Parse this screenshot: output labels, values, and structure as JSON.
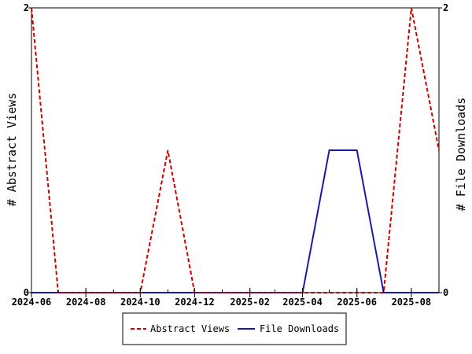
{
  "chart_data": {
    "type": "line",
    "title": "",
    "xlabel": "",
    "ylabel_left": "# Abstract Views",
    "ylabel_right": "# File Downloads",
    "x_tick_labels": [
      "2024-06",
      "2024-08",
      "2024-10",
      "2024-12",
      "2025-02",
      "2025-04",
      "2025-06",
      "2025-08"
    ],
    "y_left_ticks": [
      "0",
      "2"
    ],
    "y_right_ticks": [
      "0",
      "2"
    ],
    "ylim_left": [
      0,
      2
    ],
    "ylim_right": [
      0,
      2
    ],
    "xlim": [
      "2024-06-01",
      "2025-09-01"
    ],
    "grid": false,
    "legend_position": "bottom",
    "series": [
      {
        "name": "Abstract Views",
        "axis": "left",
        "color": "#cc0000",
        "style": "dashed",
        "x": [
          "2024-06-01",
          "2024-07-01",
          "2024-08-01",
          "2024-09-01",
          "2024-10-01",
          "2024-11-01",
          "2024-12-01",
          "2025-01-01",
          "2025-02-01",
          "2025-03-01",
          "2025-04-01",
          "2025-05-01",
          "2025-06-01",
          "2025-07-01",
          "2025-08-01",
          "2025-09-01"
        ],
        "values": [
          2,
          0,
          0,
          0,
          0,
          1,
          0,
          0,
          0,
          0,
          0,
          0,
          0,
          0,
          2,
          1
        ]
      },
      {
        "name": "File Downloads",
        "axis": "right",
        "color": "#1a1aaa",
        "style": "solid",
        "x": [
          "2024-06-01",
          "2024-07-01",
          "2024-08-01",
          "2024-09-01",
          "2024-10-01",
          "2024-11-01",
          "2024-12-01",
          "2025-01-01",
          "2025-02-01",
          "2025-03-01",
          "2025-04-01",
          "2025-05-01",
          "2025-06-01",
          "2025-07-01",
          "2025-08-01",
          "2025-09-01"
        ],
        "values": [
          0,
          0,
          0,
          0,
          0,
          0,
          0,
          0,
          0,
          0,
          0,
          1,
          1,
          0,
          0,
          0
        ]
      }
    ]
  }
}
